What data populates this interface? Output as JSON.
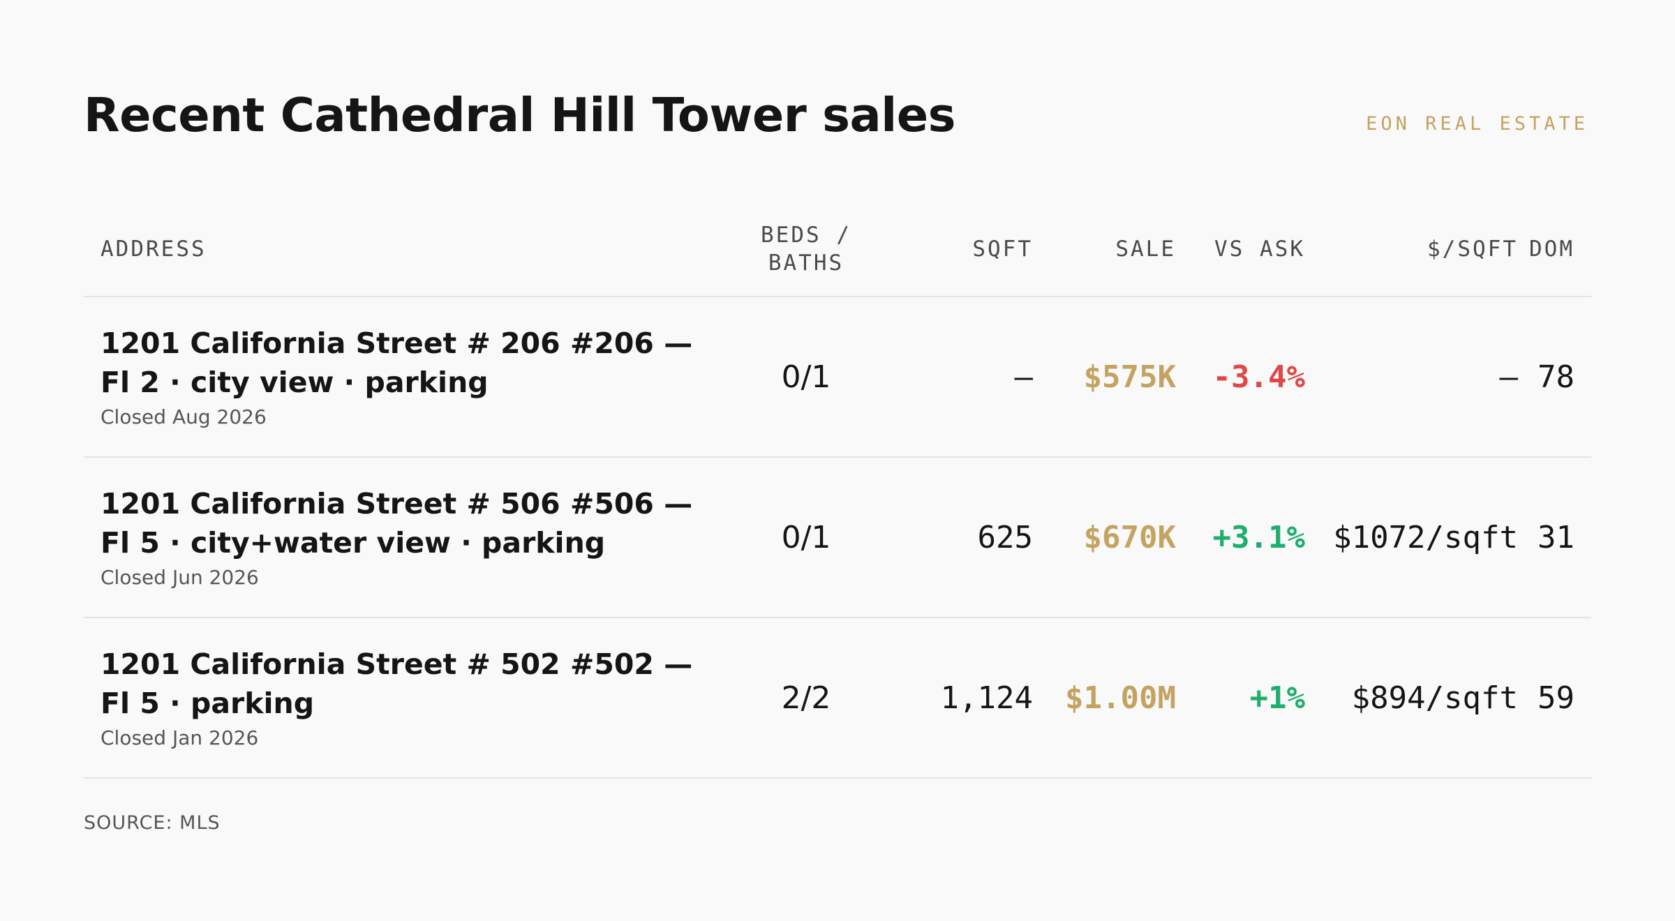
{
  "header": {
    "title": "Recent Cathedral Hill Tower sales",
    "brand": "EON REAL ESTATE"
  },
  "table": {
    "columns": {
      "address": "ADDRESS",
      "beds_baths_line1": "BEDS /",
      "beds_baths_line2": "BATHS",
      "sqft": "SQFT",
      "sale": "SALE",
      "vs_ask": "VS ASK",
      "price_per_sqft": "$/SQFT",
      "dom": "DOM"
    },
    "rows": [
      {
        "address": "1201 California Street # 206 #206 — Fl 2 · city view · parking",
        "closed": "Closed Aug 2026",
        "beds_baths": "0/1",
        "sqft": "—",
        "sale": "$575K",
        "vs_ask": "-3.4%",
        "vs_ask_direction": "negative",
        "price_per_sqft": "—",
        "dom": "78"
      },
      {
        "address": "1201 California Street # 506 #506 — Fl 5 · city+water view · parking",
        "closed": "Closed Jun 2026",
        "beds_baths": "0/1",
        "sqft": "625",
        "sale": "$670K",
        "vs_ask": "+3.1%",
        "vs_ask_direction": "positive",
        "price_per_sqft": "$1072/sqft",
        "dom": "31"
      },
      {
        "address": "1201 California Street # 502 #502 — Fl 5 · parking",
        "closed": "Closed Jan 2026",
        "beds_baths": "2/2",
        "sqft": "1,124",
        "sale": "$1.00M",
        "vs_ask": "+1%",
        "vs_ask_direction": "positive",
        "price_per_sqft": "$894/sqft",
        "dom": "59"
      }
    ]
  },
  "footer": {
    "source": "SOURCE: MLS"
  },
  "colors": {
    "accent_gold": "#c4a362",
    "negative_red": "#e04848",
    "positive_green": "#1fae6e",
    "background": "#f9f9f9"
  }
}
